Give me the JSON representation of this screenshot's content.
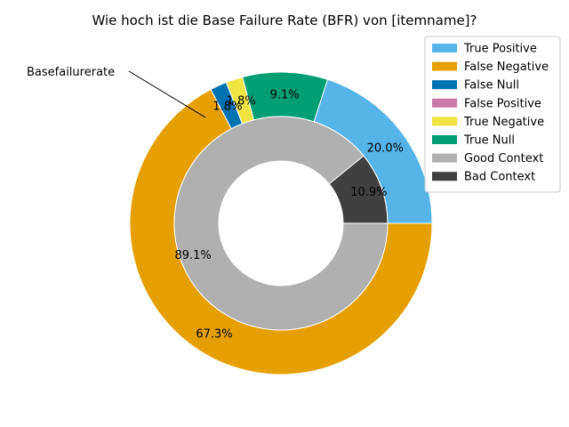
{
  "chart_data": {
    "type": "pie",
    "subtype": "nested-donut",
    "title": "Wie hoch ist die Base Failure Rate (BFR) von [itemname]?",
    "annotation": "Basefailurerate",
    "legend_position": "top-right",
    "outer_ring": {
      "labels": [
        "True Positive",
        "True Null",
        "True Negative",
        "False Null",
        "False Positive",
        "False Negative"
      ],
      "values": [
        20.0,
        9.1,
        1.8,
        1.8,
        0.0,
        67.3
      ],
      "display": [
        "20.0%",
        "9.1%",
        "1.8%",
        "1.8%",
        "",
        "67.3%"
      ],
      "colors": [
        "#56b4e9",
        "#009e73",
        "#f0e442",
        "#0072b2",
        "#cc79a7",
        "#e69f00"
      ]
    },
    "inner_ring": {
      "labels": [
        "Bad Context",
        "Good Context"
      ],
      "values": [
        10.9,
        89.1
      ],
      "display": [
        "10.9%",
        "89.1%"
      ],
      "colors": [
        "#404040",
        "#b0b0b0"
      ]
    },
    "legend": [
      {
        "label": "True Positive",
        "color": "#56b4e9"
      },
      {
        "label": "False Negative",
        "color": "#e69f00"
      },
      {
        "label": "False Null",
        "color": "#0072b2"
      },
      {
        "label": "False Positive",
        "color": "#cc79a7"
      },
      {
        "label": "True Negative",
        "color": "#f0e442"
      },
      {
        "label": "True Null",
        "color": "#009e73"
      },
      {
        "label": "Good Context",
        "color": "#b0b0b0"
      },
      {
        "label": "Bad Context",
        "color": "#404040"
      }
    ]
  }
}
